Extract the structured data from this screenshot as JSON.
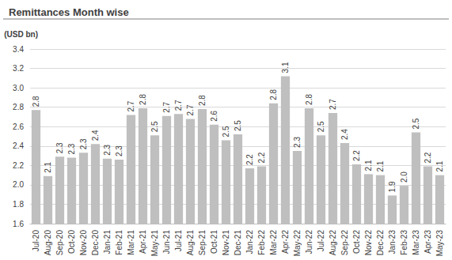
{
  "chart_data": {
    "type": "bar",
    "title": "Remittances Month wise",
    "ylabel": "(USD bn)",
    "categories": [
      "Jul-20",
      "Aug-20",
      "Sep-20",
      "Oct-20",
      "Nov-20",
      "Dec-20",
      "Jan-21",
      "Feb-21",
      "Mar-21",
      "Apr-21",
      "May-21",
      "Jun-21",
      "Jul-21",
      "Aug-21",
      "Sep-21",
      "Oct-21",
      "Nov-21",
      "Dec-21",
      "Jan-22",
      "Feb-22",
      "Mar-22",
      "Apr-22",
      "May-22",
      "Jun-22",
      "Jul-22",
      "Aug-22",
      "Sep-22",
      "Oct-22",
      "Nov-22",
      "Dec-22",
      "Jan-23",
      "Feb-23",
      "Mar-23",
      "Apr-23",
      "May-23"
    ],
    "values": [
      2.77,
      2.09,
      2.29,
      2.28,
      2.33,
      2.42,
      2.27,
      2.26,
      2.72,
      2.79,
      2.51,
      2.71,
      2.73,
      2.68,
      2.78,
      2.62,
      2.46,
      2.52,
      2.17,
      2.19,
      2.84,
      3.12,
      2.35,
      2.79,
      2.51,
      2.74,
      2.43,
      2.21,
      2.11,
      2.1,
      1.89,
      1.99,
      2.54,
      2.19,
      2.1
    ],
    "value_labels": [
      "2.8",
      "2.1",
      "2.3",
      "2.3",
      "2.3",
      "2.4",
      "2.3",
      "2.3",
      "2.7",
      "2.8",
      "2.5",
      "2.7",
      "2.7",
      "2.7",
      "2.8",
      "2.6",
      "2.5",
      "2.5",
      "2.2",
      "2.2",
      "2.8",
      "3.1",
      "2.3",
      "2.8",
      "2.5",
      "2.7",
      "2.4",
      "2.2",
      "2.1",
      "2.1",
      "1.9",
      "2.0",
      "2.5",
      "2.2",
      "2.1"
    ],
    "color": "#bfbfbf",
    "data_labels": true,
    "grid": true,
    "ylim": [
      1.6,
      3.4
    ],
    "yticks": [
      1.6,
      1.8,
      {
        "value": 2,
        "label": "2.0"
      },
      2.2,
      2.4,
      2.6,
      2.8,
      {
        "value": 3,
        "label": "3.0"
      },
      3.2,
      3.4
    ]
  }
}
